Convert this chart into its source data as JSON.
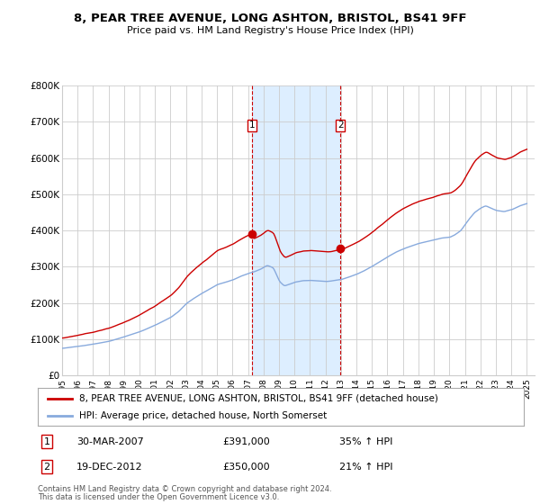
{
  "title": "8, PEAR TREE AVENUE, LONG ASHTON, BRISTOL, BS41 9FF",
  "subtitle": "Price paid vs. HM Land Registry's House Price Index (HPI)",
  "ylim": [
    0,
    800000
  ],
  "yticks": [
    0,
    100000,
    200000,
    300000,
    400000,
    500000,
    600000,
    700000,
    800000
  ],
  "ytick_labels": [
    "£0",
    "£100K",
    "£200K",
    "£300K",
    "£400K",
    "£500K",
    "£600K",
    "£700K",
    "£800K"
  ],
  "sale1_date": 2007.24,
  "sale1_price": 391000,
  "sale1_text": "30-MAR-2007",
  "sale1_amount": "£391,000",
  "sale1_hpi": "35% ↑ HPI",
  "sale2_date": 2012.97,
  "sale2_price": 350000,
  "sale2_text": "19-DEC-2012",
  "sale2_amount": "£350,000",
  "sale2_hpi": "21% ↑ HPI",
  "line1_color": "#cc0000",
  "line2_color": "#88aadd",
  "shade_color": "#ddeeff",
  "marker_color": "#cc0000",
  "legend1": "8, PEAR TREE AVENUE, LONG ASHTON, BRISTOL, BS41 9FF (detached house)",
  "legend2": "HPI: Average price, detached house, North Somerset",
  "footnote1": "Contains HM Land Registry data © Crown copyright and database right 2024.",
  "footnote2": "This data is licensed under the Open Government Licence v3.0.",
  "bg_color": "#ffffff",
  "grid_color": "#cccccc"
}
